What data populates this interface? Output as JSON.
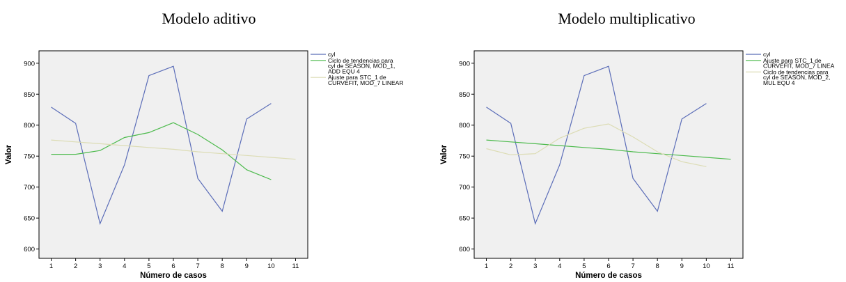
{
  "chart_data": [
    {
      "type": "line",
      "title": "Modelo aditivo",
      "xlabel": "Número de casos",
      "ylabel": "Valor",
      "x": [
        1,
        2,
        3,
        4,
        5,
        6,
        7,
        8,
        9,
        10,
        11
      ],
      "xlim": [
        0.5,
        11.5
      ],
      "ylim": [
        585,
        920
      ],
      "yticks": [
        600,
        650,
        700,
        750,
        800,
        850,
        900
      ],
      "grid": false,
      "legend_position": "right",
      "series": [
        {
          "name": "cyl",
          "color": "#5b6db8",
          "values": [
            829,
            803,
            641,
            736,
            880,
            895,
            714,
            661,
            810,
            835,
            null
          ]
        },
        {
          "name": "Ciclo de tendencias para cyl de SEASON, MOD_1, ADD EQU 4",
          "color": "#4cba4c",
          "values": [
            753,
            753,
            759,
            780,
            788,
            804,
            785,
            760,
            728,
            712,
            null
          ]
        },
        {
          "name": "Ajuste para STC_1 de CURVEFIT, MOD_7 LINEAR",
          "color": "#dcdcb4",
          "values": [
            776,
            773,
            770,
            767,
            764,
            761,
            757,
            754,
            751,
            748,
            745
          ]
        }
      ],
      "legend_lines": [
        [
          "cyl"
        ],
        [
          "Ciclo de tendencias para",
          "cyl de SEASON, MOD_1,",
          "ADD EQU 4"
        ],
        [
          "Ajuste para STC_1 de",
          "CURVEFIT, MOD_7 LINEAR"
        ]
      ]
    },
    {
      "type": "line",
      "title": "Modelo multiplicativo",
      "xlabel": "Número de casos",
      "ylabel": "Valor",
      "x": [
        1,
        2,
        3,
        4,
        5,
        6,
        7,
        8,
        9,
        10,
        11
      ],
      "xlim": [
        0.5,
        11.5
      ],
      "ylim": [
        585,
        920
      ],
      "yticks": [
        600,
        650,
        700,
        750,
        800,
        850,
        900
      ],
      "grid": false,
      "legend_position": "right",
      "series": [
        {
          "name": "cyl",
          "color": "#5b6db8",
          "values": [
            829,
            803,
            641,
            736,
            880,
            895,
            714,
            661,
            810,
            835,
            null
          ]
        },
        {
          "name": "Ajuste para STC_1 de CURVEFIT, MOD_7 LINEA",
          "color": "#4cba4c",
          "values": [
            776,
            773,
            770,
            767,
            764,
            761,
            757,
            754,
            751,
            748,
            745
          ]
        },
        {
          "name": "Ciclo de tendencias para cyl de SEASON, MOD_2, MUL EQU 4",
          "color": "#dcdcb4",
          "values": [
            762,
            752,
            754,
            779,
            795,
            802,
            781,
            757,
            741,
            733,
            null
          ]
        }
      ],
      "legend_lines": [
        [
          "cyl"
        ],
        [
          "Ajuste para STC_1 de",
          "CURVEFIT, MOD_7 LINEA"
        ],
        [
          "Ciclo de tendencias para",
          "cyl de SEASON, MOD_2,",
          "MUL EQU 4"
        ]
      ]
    }
  ]
}
